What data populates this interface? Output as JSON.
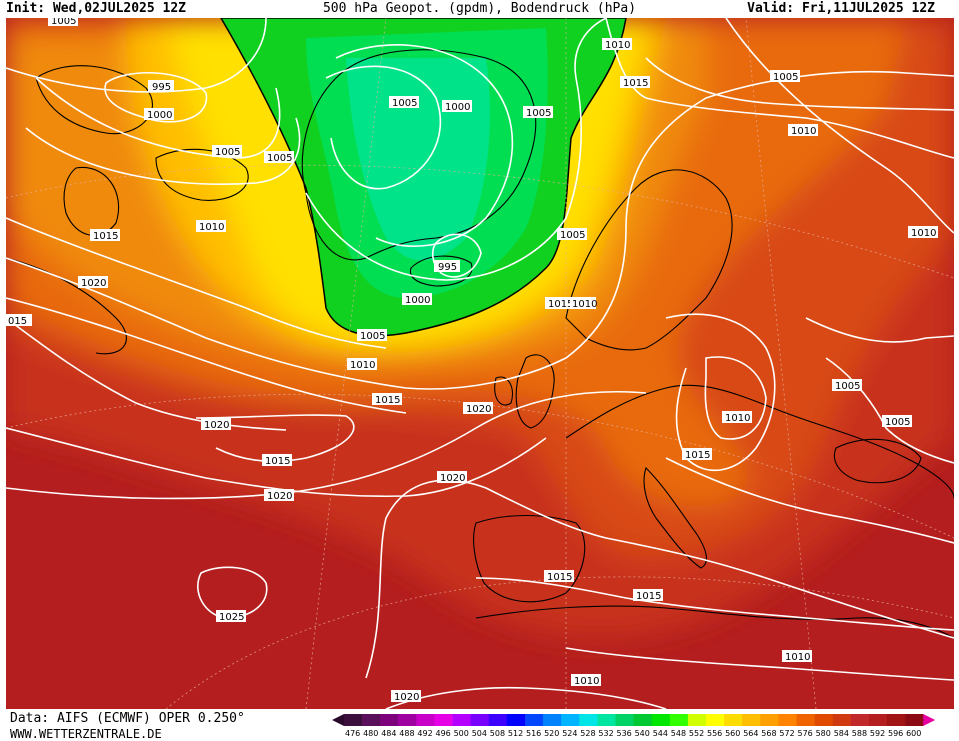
{
  "header": {
    "init": "Init: Wed,02JUL2025 12Z",
    "title": "500 hPa Geopot. (gpdm), Bodendruck (hPa)",
    "valid": "Valid: Fri,11JUL2025 12Z"
  },
  "footer": {
    "source": "Data: AIFS (ECMWF) OPER 0.250°",
    "website": "WWW.WETTERZENTRALE.DE"
  },
  "legend": {
    "values": [
      "476",
      "480",
      "484",
      "488",
      "492",
      "496",
      "500",
      "504",
      "508",
      "512",
      "516",
      "520",
      "524",
      "528",
      "532",
      "536",
      "540",
      "544",
      "548",
      "552",
      "556",
      "560",
      "564",
      "568",
      "572",
      "576",
      "580",
      "584",
      "588",
      "592",
      "596",
      "600"
    ],
    "colors": [
      "#3b0f3b",
      "#5a0f5a",
      "#7d007d",
      "#a000a0",
      "#c800c8",
      "#e600e6",
      "#b400ff",
      "#7800ff",
      "#3c00ff",
      "#0000ff",
      "#0046ff",
      "#0082ff",
      "#00b4ff",
      "#00e6e6",
      "#00e6a0",
      "#00d264",
      "#00c832",
      "#00e600",
      "#32ff00",
      "#d2ff00",
      "#ffff00",
      "#ffdc00",
      "#ffbe00",
      "#ffa000",
      "#ff8200",
      "#f06400",
      "#e04a00",
      "#d03a10",
      "#c0282a",
      "#b41e1e",
      "#a01414",
      "#8c0a14"
    ]
  },
  "isobar_labels": [
    "1005",
    "995",
    "1000",
    "1005",
    "1005",
    "1005",
    "1000",
    "1005",
    "1010",
    "1015",
    "1005",
    "1010",
    "1005",
    "1015",
    "1010",
    "1020",
    "1010",
    "995",
    "1000",
    "1005",
    "1015",
    "1010",
    "015",
    "1010",
    "1015",
    "1020",
    "1020",
    "1015",
    "1020",
    "1020",
    "1010",
    "1005",
    "1005",
    "1015",
    "1015",
    "1025",
    "1015",
    "1010",
    "1020",
    "1010"
  ]
}
